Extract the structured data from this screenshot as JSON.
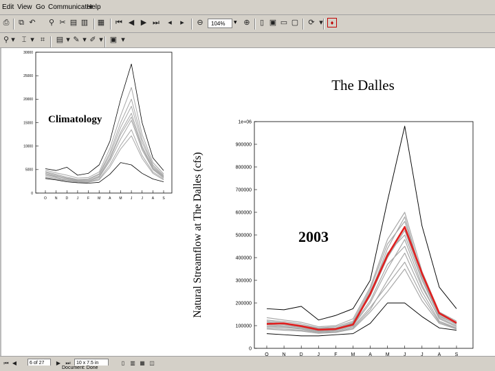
{
  "menu": [
    "Edit",
    "View",
    "Go",
    "Communicator",
    "Help"
  ],
  "toolbar": {
    "zoom_value": "104%"
  },
  "status": {
    "page_field": "6 of 27",
    "size_field": "10 x 7.5 in",
    "bottom_text": "Document: Done"
  },
  "colors": {
    "chrome": "#d4d0c8",
    "ensemble_gray": "#a8a8a8",
    "highlight_red": "#e02020"
  },
  "small_chart": {
    "label": "Climatology"
  },
  "main_chart": {
    "title": "The Dalles",
    "ylabel": "Natural Streamflow at The Dalles (cfs)",
    "year_label": "2003"
  },
  "chart_data": [
    {
      "type": "line",
      "label": "Climatology",
      "categories": [
        "O",
        "N",
        "D",
        "J",
        "F",
        "M",
        "A",
        "M",
        "J",
        "J",
        "A",
        "S"
      ],
      "ylim": [
        0,
        30000
      ],
      "yticks": [
        "0",
        "5000",
        "10000",
        "15000",
        "20000",
        "25000",
        "30000"
      ],
      "grid": false,
      "series": [
        {
          "role": "max",
          "values": [
            5200,
            4800,
            5500,
            3800,
            4200,
            6000,
            11000,
            20000,
            27500,
            15000,
            7500,
            4800
          ]
        },
        {
          "role": "min",
          "values": [
            3100,
            2800,
            2400,
            2200,
            2100,
            2300,
            4000,
            6500,
            6000,
            4200,
            3000,
            2400
          ]
        },
        {
          "role": "ensemble",
          "values": [
            4200,
            3600,
            3000,
            2600,
            2700,
            3600,
            7500,
            13000,
            17000,
            10000,
            5400,
            3500
          ]
        },
        {
          "role": "ensemble",
          "values": [
            3800,
            3300,
            2800,
            2500,
            2500,
            3300,
            6800,
            11500,
            15500,
            9200,
            5000,
            3200
          ]
        },
        {
          "role": "ensemble",
          "values": [
            4600,
            4000,
            3400,
            2900,
            3000,
            4100,
            8600,
            15000,
            20000,
            11500,
            6000,
            3800
          ]
        },
        {
          "role": "ensemble",
          "values": [
            3500,
            3100,
            2700,
            2400,
            2400,
            3000,
            6000,
            10200,
            13500,
            8000,
            4500,
            3000
          ]
        },
        {
          "role": "ensemble",
          "values": [
            4900,
            4300,
            3800,
            3200,
            3300,
            4500,
            9500,
            16500,
            22500,
            12500,
            6500,
            4100
          ]
        },
        {
          "role": "ensemble",
          "values": [
            4000,
            3500,
            3100,
            2700,
            2700,
            3500,
            7200,
            12500,
            16200,
            9600,
            5200,
            3400
          ]
        },
        {
          "role": "ensemble",
          "values": [
            3300,
            2900,
            2600,
            2300,
            2300,
            2800,
            5500,
            9400,
            12200,
            7400,
            4200,
            2800
          ]
        },
        {
          "role": "ensemble",
          "values": [
            4400,
            3800,
            3200,
            2800,
            2900,
            3900,
            8100,
            14000,
            18500,
            10800,
            5700,
            3600
          ]
        }
      ]
    },
    {
      "type": "line",
      "label": "2003",
      "categories": [
        "O",
        "N",
        "D",
        "J",
        "F",
        "M",
        "A",
        "M",
        "J",
        "J",
        "A",
        "S"
      ],
      "ylim": [
        0,
        1000000
      ],
      "yticks": [
        "0",
        "100000",
        "200000",
        "300000",
        "400000",
        "500000",
        "600000",
        "700000",
        "800000",
        "900000",
        "1e+06"
      ],
      "grid": false,
      "series": [
        {
          "role": "max",
          "values": [
            175000,
            170000,
            185000,
            125000,
            145000,
            175000,
            300000,
            650000,
            980000,
            540000,
            270000,
            175000
          ]
        },
        {
          "role": "min",
          "values": [
            65000,
            60000,
            55000,
            55000,
            60000,
            65000,
            110000,
            200000,
            200000,
            140000,
            90000,
            80000
          ]
        },
        {
          "role": "highlight",
          "values": [
            108000,
            110000,
            98000,
            82000,
            85000,
            105000,
            240000,
            410000,
            535000,
            330000,
            155000,
            112000
          ]
        },
        {
          "role": "ensemble",
          "values": [
            120000,
            112000,
            102000,
            88000,
            90000,
            115000,
            240000,
            440000,
            580000,
            320000,
            150000,
            110000
          ]
        },
        {
          "role": "ensemble",
          "values": [
            100000,
            95000,
            88000,
            75000,
            80000,
            100000,
            200000,
            350000,
            480000,
            280000,
            130000,
            95000
          ]
        },
        {
          "role": "ensemble",
          "values": [
            135000,
            125000,
            115000,
            95000,
            100000,
            130000,
            270000,
            480000,
            600000,
            340000,
            160000,
            120000
          ]
        },
        {
          "role": "ensemble",
          "values": [
            90000,
            85000,
            80000,
            70000,
            72000,
            90000,
            170000,
            300000,
            420000,
            250000,
            120000,
            90000
          ]
        },
        {
          "role": "ensemble",
          "values": [
            110000,
            105000,
            95000,
            82000,
            85000,
            110000,
            230000,
            400000,
            520000,
            310000,
            145000,
            105000
          ]
        },
        {
          "role": "ensemble",
          "values": [
            95000,
            92000,
            85000,
            72000,
            76000,
            95000,
            180000,
            280000,
            380000,
            230000,
            115000,
            88000
          ]
        },
        {
          "role": "ensemble",
          "values": [
            125000,
            118000,
            108000,
            90000,
            95000,
            120000,
            260000,
            460000,
            560000,
            330000,
            155000,
            115000
          ]
        },
        {
          "role": "ensemble",
          "values": [
            85000,
            80000,
            76000,
            66000,
            70000,
            85000,
            160000,
            250000,
            350000,
            210000,
            110000,
            85000
          ]
        },
        {
          "role": "ensemble",
          "values": [
            115000,
            108000,
            100000,
            85000,
            88000,
            112000,
            250000,
            420000,
            500000,
            300000,
            140000,
            108000
          ]
        },
        {
          "role": "ensemble",
          "values": [
            105000,
            100000,
            92000,
            78000,
            82000,
            105000,
            210000,
            370000,
            450000,
            270000,
            135000,
            100000
          ]
        }
      ]
    }
  ]
}
